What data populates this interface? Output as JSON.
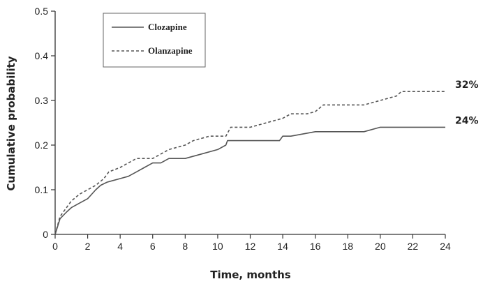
{
  "chart_data": {
    "type": "line",
    "xlabel": "Time, months",
    "ylabel": "Cumulative probability",
    "xlim": [
      0,
      24
    ],
    "ylim": [
      0,
      0.5
    ],
    "xticks": [
      "0",
      "2",
      "4",
      "6",
      "8",
      "10",
      "12",
      "14",
      "16",
      "18",
      "20",
      "22",
      "24"
    ],
    "yticks": [
      "0",
      "0.1",
      "0.2",
      "0.3",
      "0.4",
      "0.5"
    ],
    "grid": false,
    "legend_position": "top-left",
    "series": [
      {
        "name": "Clozapine",
        "style": "solid",
        "color": "#555555",
        "end_label": "24%",
        "points": [
          [
            0,
            0
          ],
          [
            0.3,
            0.035
          ],
          [
            0.7,
            0.05
          ],
          [
            1,
            0.06
          ],
          [
            1.5,
            0.07
          ],
          [
            2,
            0.08
          ],
          [
            2.5,
            0.1
          ],
          [
            2.8,
            0.11
          ],
          [
            3.2,
            0.117
          ],
          [
            3.5,
            0.12
          ],
          [
            4,
            0.125
          ],
          [
            4.5,
            0.13
          ],
          [
            5,
            0.14
          ],
          [
            5.5,
            0.15
          ],
          [
            6,
            0.16
          ],
          [
            6.5,
            0.16
          ],
          [
            7,
            0.17
          ],
          [
            8,
            0.17
          ],
          [
            9,
            0.18
          ],
          [
            10,
            0.19
          ],
          [
            10.5,
            0.2
          ],
          [
            10.6,
            0.21
          ],
          [
            12,
            0.21
          ],
          [
            13.8,
            0.21
          ],
          [
            14,
            0.22
          ],
          [
            14.5,
            0.22
          ],
          [
            16,
            0.23
          ],
          [
            18,
            0.23
          ],
          [
            19,
            0.23
          ],
          [
            20,
            0.24
          ],
          [
            24,
            0.24
          ]
        ]
      },
      {
        "name": "Olanzapine",
        "style": "dashed",
        "color": "#555555",
        "end_label": "32%",
        "points": [
          [
            0,
            0
          ],
          [
            0.3,
            0.04
          ],
          [
            0.7,
            0.06
          ],
          [
            1,
            0.075
          ],
          [
            1.5,
            0.09
          ],
          [
            2,
            0.1
          ],
          [
            2.5,
            0.11
          ],
          [
            3,
            0.125
          ],
          [
            3.3,
            0.14
          ],
          [
            4,
            0.15
          ],
          [
            4.5,
            0.16
          ],
          [
            5,
            0.17
          ],
          [
            6,
            0.17
          ],
          [
            6.5,
            0.18
          ],
          [
            7,
            0.19
          ],
          [
            8,
            0.2
          ],
          [
            8.5,
            0.21
          ],
          [
            9,
            0.215
          ],
          [
            9.5,
            0.22
          ],
          [
            10.5,
            0.22
          ],
          [
            10.8,
            0.24
          ],
          [
            12,
            0.24
          ],
          [
            13,
            0.25
          ],
          [
            14,
            0.26
          ],
          [
            14.5,
            0.27
          ],
          [
            15.5,
            0.27
          ],
          [
            16,
            0.275
          ],
          [
            16.5,
            0.29
          ],
          [
            18,
            0.29
          ],
          [
            19,
            0.29
          ],
          [
            20,
            0.3
          ],
          [
            21,
            0.31
          ],
          [
            21.3,
            0.32
          ],
          [
            24,
            0.32
          ]
        ]
      }
    ]
  }
}
